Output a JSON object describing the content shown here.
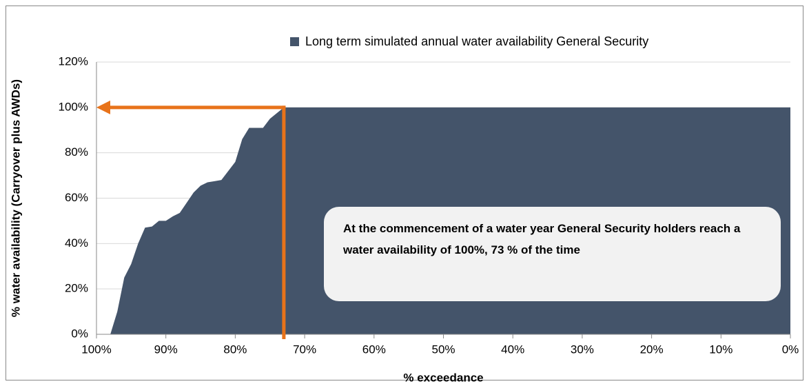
{
  "chart_data": {
    "type": "area",
    "legend_label": "Long term simulated annual water availability General Security",
    "x_label": "% exceedance",
    "y_label": "% water availability (Carryover plus AWDs)",
    "annotation": "At the commencement of a water year General Security holders reach a water availability  of 100%, 73 % of the time",
    "color": "#44546a",
    "x": [
      98,
      97,
      96,
      95,
      94,
      93,
      92,
      91,
      90,
      89,
      88,
      87,
      86,
      85,
      84,
      83,
      82,
      81,
      80,
      79,
      78,
      76,
      75,
      73,
      0
    ],
    "values": [
      0,
      10,
      25,
      31,
      40,
      47,
      47.5,
      50,
      50,
      52,
      53.5,
      58,
      62.5,
      65.5,
      67,
      67.5,
      68,
      72,
      76,
      86,
      91,
      91,
      95,
      100,
      100
    ],
    "marker": {
      "x": 73,
      "y": 100,
      "color": "#e8731a"
    },
    "xlim": [
      100,
      0
    ],
    "xticks": [
      {
        "value": 100,
        "label": "100%"
      },
      {
        "value": 90,
        "label": "90%"
      },
      {
        "value": 80,
        "label": "80%"
      },
      {
        "value": 70,
        "label": "70%"
      },
      {
        "value": 60,
        "label": "60%"
      },
      {
        "value": 50,
        "label": "50%"
      },
      {
        "value": 40,
        "label": "40%"
      },
      {
        "value": 30,
        "label": "30%"
      },
      {
        "value": 20,
        "label": "20%"
      },
      {
        "value": 10,
        "label": "10%"
      },
      {
        "value": 0,
        "label": "0%"
      }
    ],
    "ylim": [
      0,
      120
    ],
    "yticks": [
      {
        "value": 0,
        "label": "0%"
      },
      {
        "value": 20,
        "label": "20%"
      },
      {
        "value": 40,
        "label": "40%"
      },
      {
        "value": 60,
        "label": "60%"
      },
      {
        "value": 80,
        "label": "80%"
      },
      {
        "value": 100,
        "label": "100%"
      },
      {
        "value": 120,
        "label": "120%"
      }
    ],
    "grid": true
  }
}
